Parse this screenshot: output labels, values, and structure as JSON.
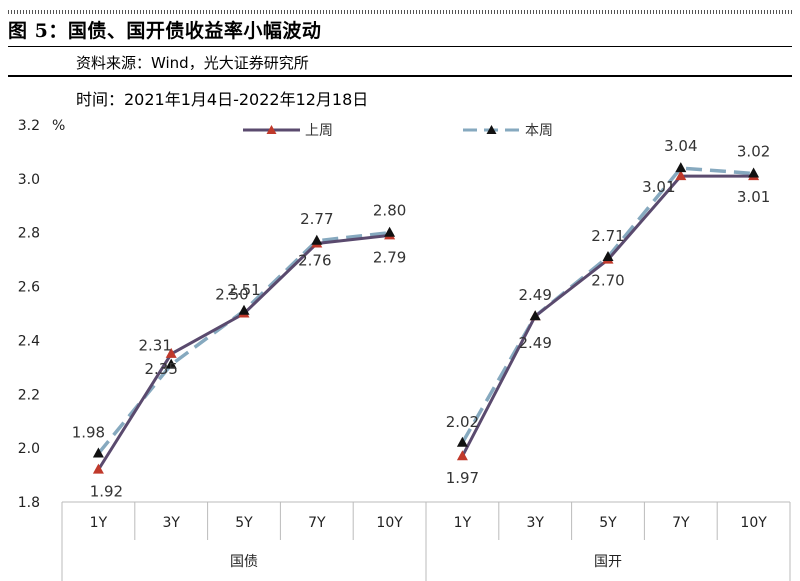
{
  "figure": {
    "title": "图 5：国债、国开债收益率小幅波动",
    "source": "资料来源：Wind，光大证券研究所",
    "period": "时间：2021年1月4日-2022年12月18日"
  },
  "colors": {
    "last_week": "#5a4a6e",
    "this_week": "#86a9bf",
    "marker_red": "#c0392b",
    "marker_black": "#111111"
  },
  "chart_data": {
    "type": "line",
    "unit_label": "%",
    "ylim": [
      1.8,
      3.2
    ],
    "yticks": [
      1.8,
      2.0,
      2.2,
      2.4,
      2.6,
      2.8,
      3.0,
      3.2
    ],
    "grid": false,
    "legend_position": "top",
    "groups": [
      {
        "name": "国债",
        "categories": [
          "1Y",
          "3Y",
          "5Y",
          "7Y",
          "10Y"
        ],
        "series": [
          {
            "name": "上周",
            "values": [
              1.92,
              2.35,
              2.5,
              2.76,
              2.79
            ]
          },
          {
            "name": "本周",
            "values": [
              1.98,
              2.31,
              2.51,
              2.77,
              2.8
            ]
          }
        ]
      },
      {
        "name": "国开",
        "categories": [
          "1Y",
          "3Y",
          "5Y",
          "7Y",
          "10Y"
        ],
        "series": [
          {
            "name": "上周",
            "values": [
              1.97,
              2.49,
              2.7,
              3.01,
              3.01
            ]
          },
          {
            "name": "本周",
            "values": [
              2.02,
              2.49,
              2.71,
              3.04,
              3.02
            ]
          }
        ]
      }
    ],
    "labels": [
      [
        "1.92",
        "2.35",
        "2.50",
        "2.76",
        "2.79",
        "1.98",
        "2.31",
        "2.51",
        "2.77",
        "2.80"
      ],
      [
        "1.97",
        "2.49",
        "2.70",
        "3.01",
        "3.01",
        "2.02",
        "2.49",
        "2.71",
        "3.04",
        "3.02"
      ]
    ]
  }
}
